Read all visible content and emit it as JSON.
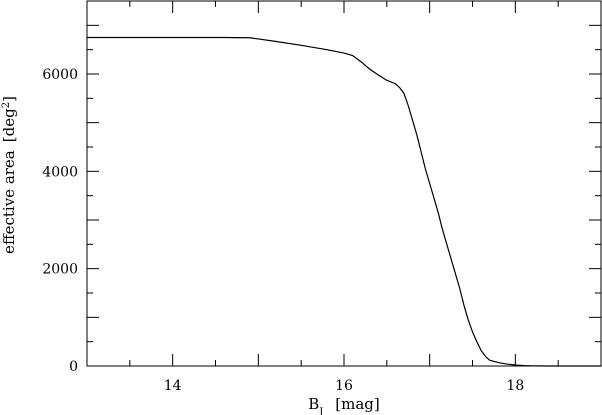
{
  "chart_data": {
    "type": "line",
    "title": "",
    "xlabel": {
      "main": "B",
      "sub": "J",
      "unit": "[mag]"
    },
    "ylabel": {
      "main": "effective area",
      "unit_open": "[deg",
      "unit_sup": "2",
      "unit_close": "]"
    },
    "xlim": [
      13.0,
      19.0
    ],
    "ylim": [
      0,
      7500
    ],
    "x_ticks": [
      "14",
      "16",
      "18"
    ],
    "y_ticks": [
      "0",
      "2000",
      "4000",
      "6000"
    ],
    "grid": false,
    "legend": "none",
    "series": [
      {
        "x": [
          13.0,
          14.0,
          14.6,
          14.9,
          15.0,
          15.2,
          15.5,
          15.8,
          16.0,
          16.1,
          16.2,
          16.3,
          16.4,
          16.5,
          16.6,
          16.65,
          16.7,
          16.75,
          16.8,
          16.85,
          16.9,
          16.95,
          17.0,
          17.05,
          17.1,
          17.15,
          17.2,
          17.25,
          17.3,
          17.35,
          17.4,
          17.45,
          17.5,
          17.55,
          17.6,
          17.65,
          17.7,
          17.8,
          17.9,
          18.0,
          18.1,
          18.2,
          18.4,
          19.0
        ],
        "y": [
          6750,
          6750,
          6750,
          6745,
          6720,
          6670,
          6590,
          6500,
          6430,
          6380,
          6250,
          6100,
          5980,
          5870,
          5800,
          5720,
          5600,
          5350,
          5050,
          4750,
          4400,
          4050,
          3750,
          3450,
          3150,
          2800,
          2500,
          2200,
          1900,
          1600,
          1250,
          950,
          700,
          500,
          320,
          200,
          120,
          70,
          40,
          20,
          8,
          3,
          0,
          0
        ]
      }
    ]
  }
}
